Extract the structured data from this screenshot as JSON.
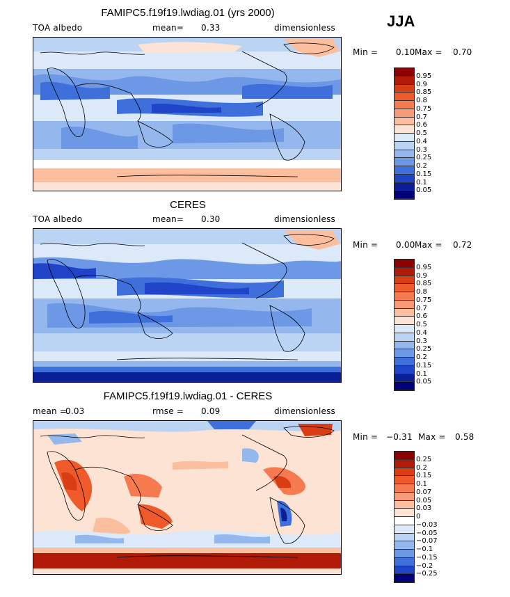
{
  "season": "JJA",
  "panels": [
    {
      "title": "FAMIPC5.f19f19.lwdiag.01 (yrs 2000)",
      "left_label": "TOA albedo",
      "mid_label": "mean=",
      "mid_value": "0.33",
      "right_label": "dimensionless",
      "min_label": "Min =",
      "min_value": "0.10",
      "max_label": "Max =",
      "max_value": "0.70",
      "colorbar_ticks": [
        "0.95",
        "0.9",
        "0.85",
        "0.8",
        "0.75",
        "0.7",
        "0.6",
        "0.5",
        "0.4",
        "0.3",
        "0.25",
        "0.2",
        "0.15",
        "0.1",
        "0.05"
      ],
      "colorbar_colors": [
        "#8b0000",
        "#b21a08",
        "#d93d13",
        "#ee5a2a",
        "#f57a50",
        "#f89a78",
        "#fbbe9f",
        "#fde3d3",
        "#dbe9f9",
        "#bcd4f4",
        "#94b8ee",
        "#6c98e6",
        "#3f6fdb",
        "#1f44c8",
        "#0a1e96",
        "#000078"
      ]
    },
    {
      "title": "CERES",
      "left_label": "TOA albedo",
      "mid_label": "mean=",
      "mid_value": "0.30",
      "right_label": "dimensionless",
      "min_label": "Min =",
      "min_value": "0.00",
      "max_label": "Max =",
      "max_value": "0.72",
      "colorbar_ticks": [
        "0.95",
        "0.9",
        "0.85",
        "0.8",
        "0.75",
        "0.7",
        "0.6",
        "0.5",
        "0.4",
        "0.3",
        "0.25",
        "0.2",
        "0.15",
        "0.1",
        "0.05"
      ],
      "colorbar_colors": [
        "#8b0000",
        "#b21a08",
        "#d93d13",
        "#ee5a2a",
        "#f57a50",
        "#f89a78",
        "#fbbe9f",
        "#fde3d3",
        "#dbe9f9",
        "#bcd4f4",
        "#94b8ee",
        "#6c98e6",
        "#3f6fdb",
        "#1f44c8",
        "#0a1e96",
        "#000078"
      ]
    },
    {
      "title": "FAMIPC5.f19f19.lwdiag.01 - CERES",
      "left_label": "mean =",
      "left_value": "0.03",
      "mid_label": "rmse =",
      "mid_value": "0.09",
      "right_label": "dimensionless",
      "min_label": "Min =",
      "min_value": "−0.31",
      "max_label": "Max =",
      "max_value": "0.58",
      "colorbar_ticks": [
        "0.25",
        "0.2",
        "0.15",
        "0.1",
        "0.07",
        "0.05",
        "0.03",
        "0",
        "−0.03",
        "−0.05",
        "−0.07",
        "−0.1",
        "−0.15",
        "−0.2",
        "−0.25"
      ],
      "colorbar_colors": [
        "#8b0000",
        "#b21a08",
        "#d93d13",
        "#ee5a2a",
        "#f57a50",
        "#f89a78",
        "#fbbe9f",
        "#fde3d3",
        "#ffffff",
        "#dbe9f9",
        "#bcd4f4",
        "#94b8ee",
        "#6c98e6",
        "#3f6fdb",
        "#1f44c8",
        "#000078"
      ]
    }
  ]
}
